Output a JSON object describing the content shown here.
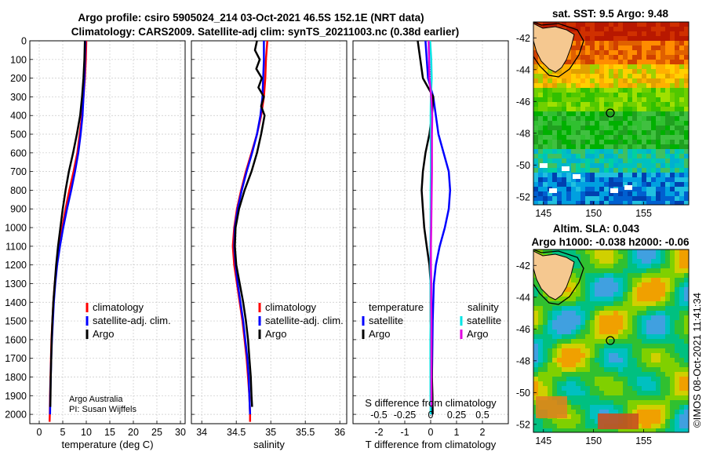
{
  "colors": {
    "climatology": "#ff0000",
    "satellite": "#0000ff",
    "argo": "#000000",
    "sat_salinity": "#00e5e5",
    "argo_salinity": "#e000e0",
    "land": "#f5c890"
  },
  "title": {
    "line1": "Argo profile: csiro 5905024_214 03-Oct-2021 46.5S 152.1E (NRT data)",
    "line2": "Climatology: CARS2009. Satellite-adj clim: synTS_20211003.nc (0.38d earlier)"
  },
  "credit": {
    "line1": "Argo Australia",
    "line2": "PI: Susan Wijffels"
  },
  "watermark": "©IMOS 08-Oct-2021 11:41:34",
  "depth_ticks": [
    "0",
    "100",
    "200",
    "300",
    "400",
    "500",
    "600",
    "700",
    "800",
    "900",
    "1000",
    "1100",
    "1200",
    "1300",
    "1400",
    "1500",
    "1600",
    "1700",
    "1800",
    "1900",
    "2000"
  ],
  "chart_data": [
    {
      "type": "line",
      "name": "temperature-profile",
      "xlabel": "temperature (deg C)",
      "ylabel": "depth",
      "xlim": [
        -2,
        31
      ],
      "ylim": [
        2050,
        0
      ],
      "xticks": [
        "0",
        "5",
        "10",
        "15",
        "20",
        "25",
        "30"
      ],
      "legend": {
        "climatology": "climatology",
        "satellite": "satellite-adj. clim.",
        "argo": "Argo"
      },
      "series": [
        {
          "name": "climatology",
          "depth": [
            0,
            100,
            200,
            300,
            400,
            500,
            600,
            700,
            800,
            900,
            1000,
            1100,
            1200,
            1300,
            1400,
            1500,
            1600,
            1700,
            1800,
            1900,
            2000,
            2040
          ],
          "values": [
            10,
            9.9,
            9.7,
            9.4,
            9.1,
            8.6,
            8.1,
            7.3,
            6.4,
            5.6,
            4.9,
            4.2,
            3.7,
            3.3,
            3,
            2.8,
            2.6,
            2.5,
            2.4,
            2.3,
            2.25,
            2.2
          ]
        },
        {
          "name": "satellite-adj. clim.",
          "depth": [
            0,
            100,
            200,
            300,
            400,
            500,
            600,
            700,
            800,
            900,
            1000,
            1100,
            1200,
            1300,
            1400,
            1500,
            1600,
            1700,
            1800,
            1900,
            2000
          ],
          "values": [
            9.8,
            9.7,
            9.6,
            9.4,
            9.2,
            8.8,
            8.3,
            7.6,
            6.8,
            5.9,
            5.1,
            4.4,
            3.8,
            3.4,
            3.1,
            2.9,
            2.7,
            2.55,
            2.45,
            2.35,
            2.3
          ]
        },
        {
          "name": "Argo",
          "depth": [
            0,
            100,
            200,
            300,
            400,
            500,
            600,
            700,
            800,
            900,
            1000,
            1100,
            1200,
            1300,
            1400,
            1500,
            1600,
            1700,
            1800,
            1900,
            1960
          ],
          "values": [
            9.7,
            9.6,
            9.4,
            9.1,
            8.7,
            8,
            7.2,
            6.3,
            5.6,
            5,
            4.5,
            4,
            3.6,
            3.3,
            3,
            2.8,
            2.65,
            2.55,
            2.45,
            2.4,
            2.35
          ]
        }
      ]
    },
    {
      "type": "line",
      "name": "salinity-profile",
      "xlabel": "salinity",
      "ylabel": "depth",
      "xlim": [
        33.85,
        36.1
      ],
      "ylim": [
        2050,
        0
      ],
      "xticks": [
        "34",
        "34.5",
        "35",
        "35.5",
        "36"
      ],
      "legend": {
        "climatology": "climatology",
        "satellite": "satellite-adj. clim.",
        "argo": "Argo"
      },
      "series": [
        {
          "name": "climatology",
          "depth": [
            0,
            100,
            200,
            300,
            400,
            500,
            600,
            700,
            800,
            900,
            1000,
            1100,
            1200,
            1300,
            1400,
            1500,
            1600,
            1700,
            1800,
            1900,
            2000,
            2040
          ],
          "values": [
            34.95,
            34.93,
            34.92,
            34.9,
            34.86,
            34.8,
            34.72,
            34.64,
            34.57,
            34.51,
            34.47,
            34.45,
            34.47,
            34.51,
            34.55,
            34.59,
            34.62,
            34.65,
            34.67,
            34.69,
            34.7,
            34.7
          ]
        },
        {
          "name": "satellite-adj. clim.",
          "depth": [
            0,
            100,
            200,
            300,
            400,
            500,
            600,
            700,
            800,
            900,
            1000,
            1100,
            1200,
            1300,
            1400,
            1500,
            1600,
            1700,
            1800,
            1900,
            2000
          ],
          "values": [
            34.9,
            34.9,
            34.89,
            34.88,
            34.85,
            34.8,
            34.73,
            34.65,
            34.58,
            34.52,
            34.48,
            34.47,
            34.49,
            34.52,
            34.56,
            34.6,
            34.63,
            34.66,
            34.68,
            34.69,
            34.7
          ]
        },
        {
          "name": "Argo",
          "depth": [
            0,
            50,
            100,
            150,
            200,
            250,
            300,
            350,
            400,
            500,
            600,
            700,
            800,
            900,
            1000,
            1100,
            1200,
            1300,
            1400,
            1500,
            1600,
            1700,
            1800,
            1900,
            1960
          ],
          "values": [
            34.8,
            34.77,
            34.84,
            34.79,
            34.87,
            34.82,
            34.9,
            34.86,
            34.91,
            34.86,
            34.8,
            34.72,
            34.62,
            34.54,
            34.49,
            34.48,
            34.5,
            34.55,
            34.6,
            34.64,
            34.67,
            34.69,
            34.71,
            34.72,
            34.73
          ]
        }
      ]
    },
    {
      "type": "line",
      "name": "difference-profile",
      "xlabel": "T difference from climatology",
      "top_axis_label": "S difference from climatology",
      "xlim": [
        -3,
        3
      ],
      "ylim": [
        2050,
        0
      ],
      "xticks": [
        "-2",
        "-1",
        "0",
        "1",
        "2"
      ],
      "top_ticks": [
        "-0.5",
        "-0.25",
        "0",
        "0.25",
        "0.5"
      ],
      "legend": {
        "temperature_header": "temperature",
        "salinity_header": "salinity",
        "satellite": "satellite",
        "argo": "Argo"
      },
      "series": [
        {
          "name": "temperature satellite",
          "depth": [
            0,
            100,
            200,
            300,
            400,
            500,
            600,
            700,
            800,
            900,
            1000,
            1100,
            1200,
            1300,
            1400,
            1500,
            1600,
            1700,
            1800,
            1900,
            2000
          ],
          "values": [
            -0.2,
            -0.15,
            -0.1,
            0.1,
            0.2,
            0.3,
            0.5,
            0.7,
            0.75,
            0.7,
            0.55,
            0.35,
            0.2,
            0.12,
            0.1,
            0.08,
            0.07,
            0.06,
            0.05,
            0.04,
            0.03
          ]
        },
        {
          "name": "temperature Argo",
          "depth": [
            0,
            100,
            200,
            300,
            400,
            500,
            600,
            700,
            800,
            900,
            1000,
            1100,
            1200,
            1300,
            1400,
            1500,
            1600,
            1700,
            1800,
            1900,
            2000
          ],
          "values": [
            -0.5,
            -0.4,
            -0.3,
            0.1,
            0.05,
            -0.05,
            -0.2,
            -0.3,
            -0.35,
            -0.3,
            -0.25,
            -0.15,
            -0.05,
            0,
            0,
            0,
            0.03,
            0.04,
            0.05,
            0.07,
            0.08
          ]
        },
        {
          "name": "salinity satellite",
          "depth": [
            0,
            100,
            200,
            300,
            400,
            500,
            600,
            700,
            800,
            900,
            1000,
            1100,
            1200,
            1300,
            1400,
            1500,
            1600,
            1700,
            1800,
            1900,
            2000
          ],
          "values": [
            -0.02,
            0.02,
            0.04,
            0.01,
            0,
            0,
            0.01,
            0.01,
            0,
            0,
            0,
            -0.01,
            -0.01,
            -0.005,
            0,
            0,
            -0.01,
            -0.01,
            -0.005,
            -0.005,
            0
          ]
        },
        {
          "name": "salinity Argo",
          "depth": [
            0,
            100,
            200,
            300,
            400,
            500,
            600,
            700,
            800,
            900,
            1000,
            1100,
            1200,
            1300,
            1400,
            1500,
            1600,
            1700,
            1800,
            1900,
            1960
          ],
          "values": [
            -0.08,
            -0.06,
            -0.05,
            0.02,
            0.06,
            0.05,
            0.05,
            0.05,
            0.04,
            0.03,
            0.02,
            0.01,
            0.01,
            0.02,
            0.02,
            0.03,
            0.03,
            0.03,
            0.03,
            0.03,
            0.03
          ]
        }
      ]
    },
    {
      "type": "heatmap",
      "name": "sst-map",
      "title": "sat. SST: 9.5 Argo: 9.48",
      "xticks": [
        "145",
        "150",
        "155"
      ],
      "yticks": [
        "-42",
        "-44",
        "-46",
        "-48",
        "-50",
        "-52"
      ],
      "xlim": [
        144,
        159.5
      ],
      "ylim": [
        -52.5,
        -41
      ],
      "argo_position": {
        "lon": 152.1,
        "lat": -46.5
      }
    },
    {
      "type": "heatmap",
      "name": "sla-map",
      "title1": "Altim. SLA: 0.043",
      "title2": "Argo h1000: -0.038 h2000: -0.06",
      "xticks": [
        "145",
        "150",
        "155"
      ],
      "yticks": [
        "-42",
        "-44",
        "-46",
        "-48",
        "-50",
        "-52"
      ],
      "xlim": [
        144,
        159.5
      ],
      "ylim": [
        -52.5,
        -41
      ],
      "argo_position": {
        "lon": 152.1,
        "lat": -46.5
      }
    }
  ]
}
